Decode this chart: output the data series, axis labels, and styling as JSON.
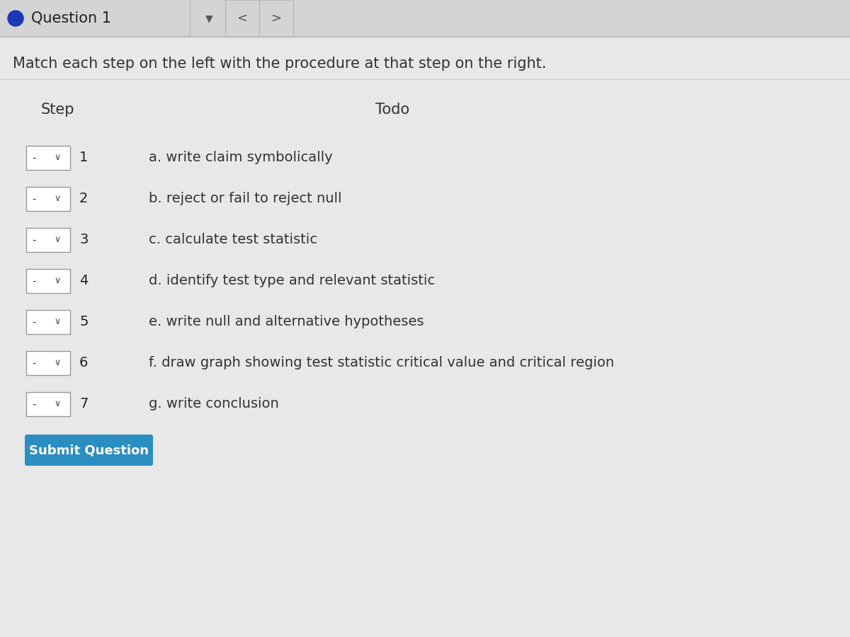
{
  "bg_color": "#d8d8d8",
  "main_bg": "#e8e8e8",
  "header_bg": "#d0d0d0",
  "question_label": "Question 1",
  "question_dot_color": "#1a3ab5",
  "instruction": "Match each step on the left with the procedure at that step on the right.",
  "col_left_header": "Step",
  "col_right_header": "Todo",
  "steps": [
    1,
    2,
    3,
    4,
    5,
    6,
    7
  ],
  "todos": [
    "a. write claim symbolically",
    "b. reject or fail to reject null",
    "c. calculate test statistic",
    "d. identify test type and relevant statistic",
    "e. write null and alternative hypotheses",
    "f. draw graph showing test statistic critical value and critical region",
    "g. write conclusion"
  ],
  "submit_btn_color": "#2a8fc0",
  "submit_btn_text": "Submit Question",
  "submit_btn_text_color": "#ffffff",
  "dropdown_bg": "#ffffff",
  "dropdown_border": "#999999",
  "dropdown_dash_color": "#444444",
  "dropdown_chevron_color": "#444444",
  "step_text_color": "#222222",
  "todo_text_color": "#333333",
  "header_sep_color": "#bbbbbb",
  "line_color": "#cccccc",
  "nav_color": "#555555",
  "instruction_fontsize": 15,
  "header_fontsize": 15,
  "step_fontsize": 14,
  "todo_fontsize": 14,
  "submit_fontsize": 13
}
